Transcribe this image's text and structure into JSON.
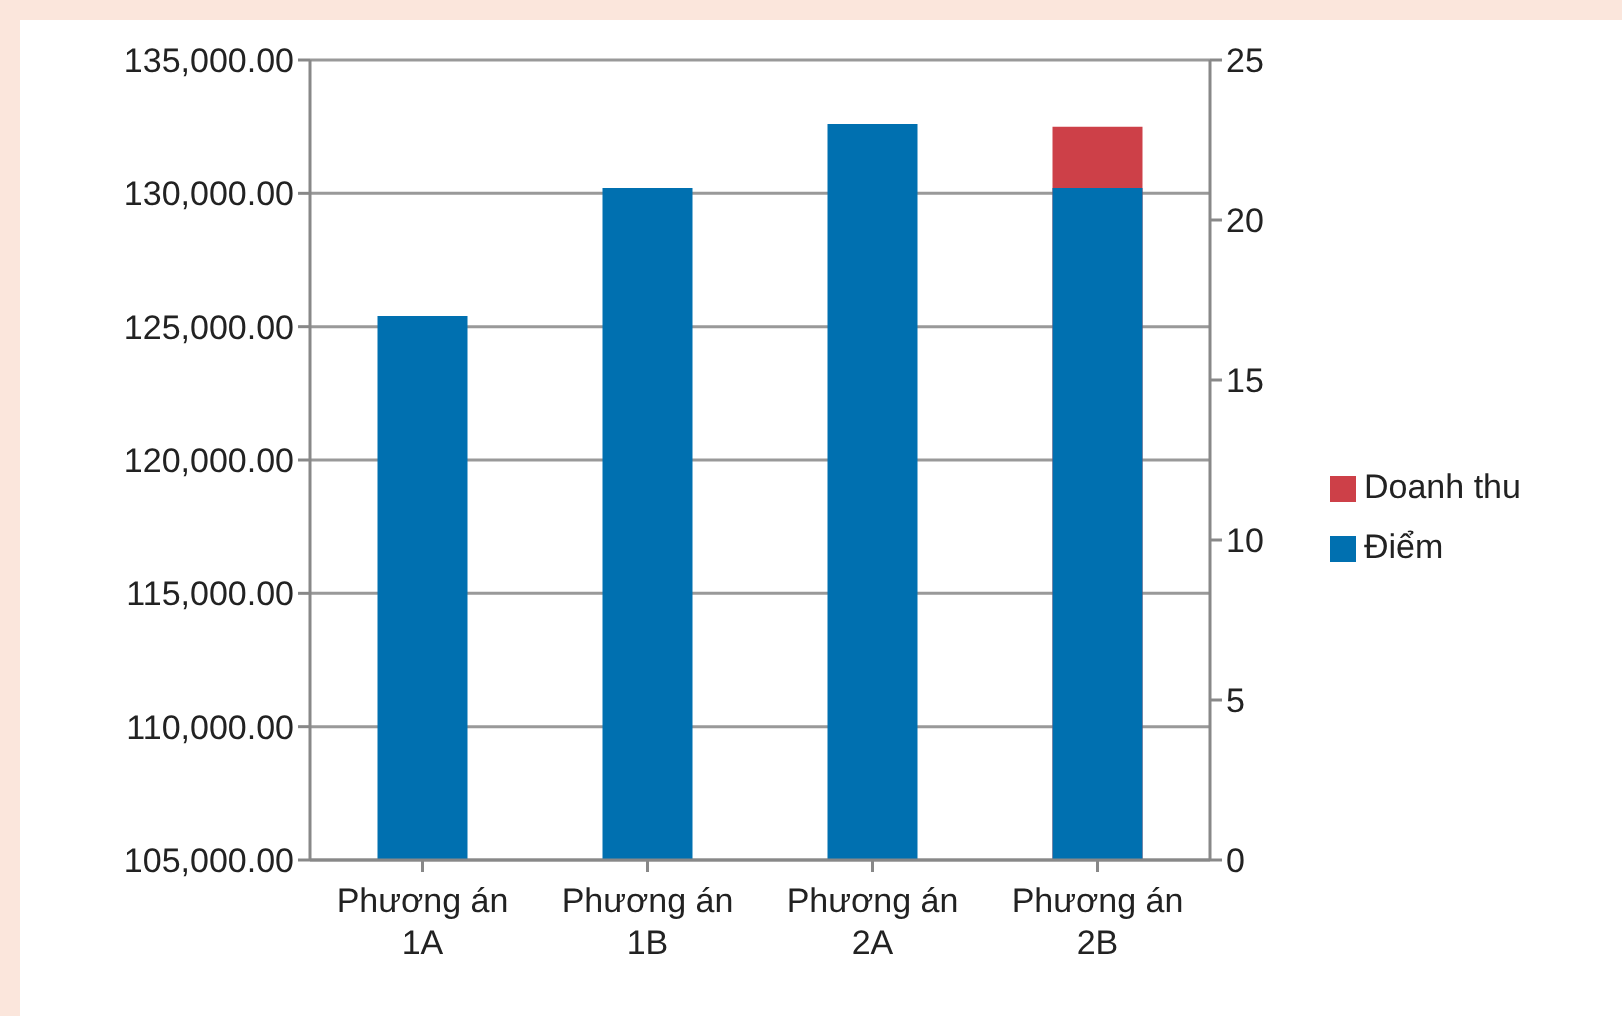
{
  "chart_data": {
    "type": "bar",
    "categories": [
      "Phương án 1A",
      "Phương án 1B",
      "Phương án 2A",
      "Phương án 2B"
    ],
    "series": [
      {
        "name": "Doanh thu",
        "color": "#cd4048",
        "values": [
          null,
          null,
          null,
          132500
        ]
      },
      {
        "name": "Điểm",
        "color": "#0070b0",
        "axis": "y2",
        "values": [
          17,
          21,
          23,
          21
        ]
      }
    ],
    "ylim": [
      105000,
      135000
    ],
    "yticks": [
      {
        "value": 105000,
        "label": "105,000.00"
      },
      {
        "value": 110000,
        "label": "110,000.00"
      },
      {
        "value": 115000,
        "label": "115,000.00"
      },
      {
        "value": 120000,
        "label": "120,000.00"
      },
      {
        "value": 125000,
        "label": "125,000.00"
      },
      {
        "value": 130000,
        "label": "130,000.00"
      },
      {
        "value": 135000,
        "label": "135,000.00"
      }
    ],
    "y2lim": [
      0,
      25
    ],
    "y2ticks": [
      0,
      5,
      10,
      15,
      20,
      25
    ],
    "grid": "y",
    "legend": "right"
  }
}
